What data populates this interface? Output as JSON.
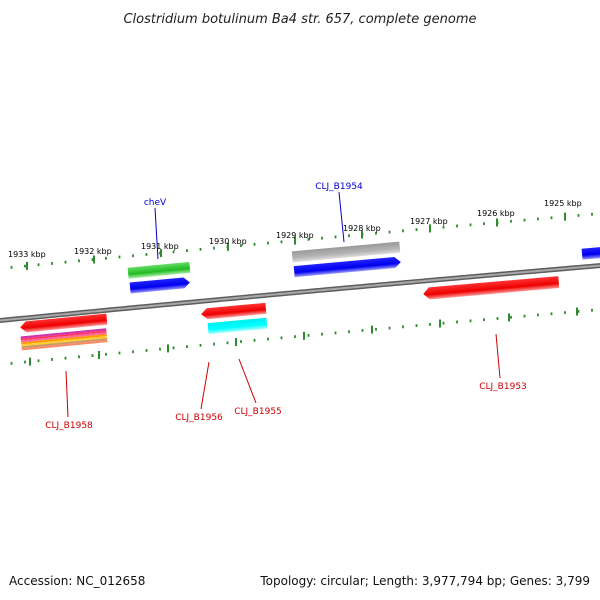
{
  "title": "Clostridium botulinum Ba4 str. 657, complete genome",
  "footer": {
    "accession": "Accession: NC_012658",
    "topology": "Topology: circular; Length: 3,977,794 bp; Genes: 3,799"
  },
  "colors": {
    "backbone": "#808080",
    "ticks": "#2e8b2e",
    "label_blue": "#0000cc",
    "label_red": "#cc0000",
    "forward_cds": "#0000ff",
    "reverse_cds": "#ff0000",
    "rna": "#00ffff",
    "orthology": "#33cc33",
    "other": "#b0b0b0"
  },
  "scale": {
    "unit": "kbp",
    "labels": [
      "1933 kbp",
      "1932 kbp",
      "1931 kbp",
      "1930 kbp",
      "1929 kbp",
      "1928 kbp",
      "1927 kbp",
      "1926 kbp",
      "1925 kbp"
    ]
  },
  "features": [
    {
      "track": "outer-2",
      "strand": "+",
      "color": "orthology"
    },
    {
      "track": "outer-1",
      "strand": "+",
      "color": "forward_cds"
    },
    {
      "track": "outer-2",
      "strand": "+",
      "color": "other"
    },
    {
      "track": "outer-1",
      "strand": "+",
      "color": "forward_cds"
    },
    {
      "track": "outer-1",
      "strand": "+",
      "color": "forward_cds"
    },
    {
      "track": "inner-1",
      "strand": "-",
      "color": "reverse_cds"
    },
    {
      "track": "inner-1",
      "strand": "-",
      "color": "reverse_cds"
    },
    {
      "track": "inner-1",
      "strand": "-",
      "color": "reverse_cds"
    },
    {
      "track": "inner-2",
      "strand": "-",
      "color": "multicolor"
    },
    {
      "track": "inner-2",
      "strand": "-",
      "color": "rna"
    }
  ],
  "gene_labels": [
    {
      "text": "cheV",
      "color": "label_blue"
    },
    {
      "text": "CLJ_B1954",
      "color": "label_blue"
    },
    {
      "text": "CLJ_B1953",
      "color": "label_red"
    },
    {
      "text": "CLJ_B1958",
      "color": "label_red"
    },
    {
      "text": "CLJ_B1956",
      "color": "label_red"
    },
    {
      "text": "CLJ_B1955",
      "color": "label_red"
    }
  ]
}
